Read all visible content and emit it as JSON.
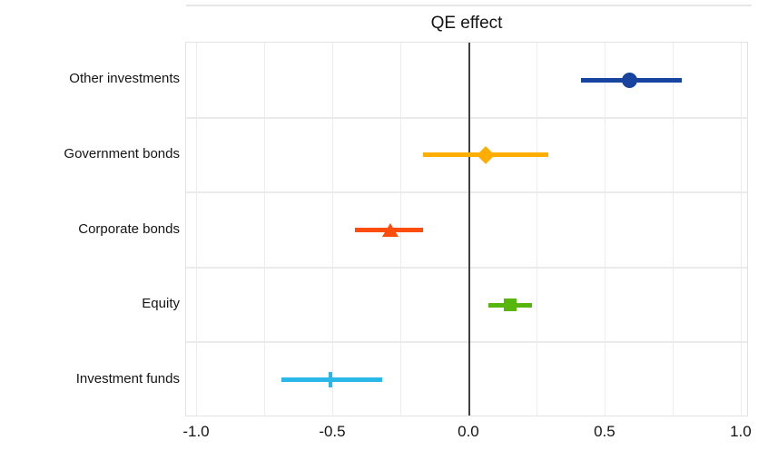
{
  "chart_data": {
    "type": "scatter",
    "subtype": "horizontal-errorbar-dot-plot",
    "title": "QE effect",
    "xlabel": "",
    "ylabel": "",
    "categories": [
      "Other investments",
      "Government bonds",
      "Corporate bonds",
      "Equity",
      "Investment funds"
    ],
    "series": [
      {
        "name": "Other investments",
        "estimate": 0.59,
        "ci_low": 0.41,
        "ci_high": 0.78,
        "color": "#17449e",
        "marker": "circle"
      },
      {
        "name": "Government bonds",
        "estimate": 0.06,
        "ci_low": -0.17,
        "ci_high": 0.29,
        "color": "#fdae00",
        "marker": "diamond"
      },
      {
        "name": "Corporate bonds",
        "estimate": -0.29,
        "ci_low": -0.42,
        "ci_high": -0.17,
        "color": "#fd4d0c",
        "marker": "triangle-up"
      },
      {
        "name": "Equity",
        "estimate": 0.15,
        "ci_low": 0.07,
        "ci_high": 0.23,
        "color": "#57b60d",
        "marker": "square"
      },
      {
        "name": "Investment funds",
        "estimate": -0.51,
        "ci_low": -0.69,
        "ci_high": -0.32,
        "color": "#29b8e8",
        "marker": "vline"
      }
    ],
    "xlim": [
      -1.04,
      1.027
    ],
    "x_ticks": [
      -1.0,
      -0.5,
      0.0,
      0.5,
      1.0
    ],
    "x_tick_labels": [
      "-1.0",
      "-0.5",
      "0.0",
      "0.5",
      "1.0"
    ],
    "x_minor_step": 0.25,
    "zero_line": true,
    "grid": true,
    "legend": "none",
    "colors": {
      "grid": "#ececec",
      "row_separator": "#ebebeb",
      "zero_line": "#404040",
      "panel_border": "#e3e3e3",
      "text": "#141414",
      "top_rule": "#e6e6e6"
    }
  }
}
